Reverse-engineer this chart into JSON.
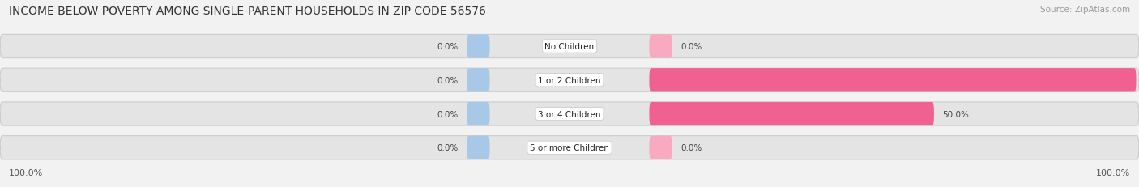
{
  "title": "INCOME BELOW POVERTY AMONG SINGLE-PARENT HOUSEHOLDS IN ZIP CODE 56576",
  "source": "Source: ZipAtlas.com",
  "categories": [
    "No Children",
    "1 or 2 Children",
    "3 or 4 Children",
    "5 or more Children"
  ],
  "single_father": [
    0.0,
    0.0,
    0.0,
    0.0
  ],
  "single_mother": [
    0.0,
    100.0,
    50.0,
    0.0
  ],
  "father_color": "#a8c8e8",
  "mother_color": "#f06090",
  "mother_color_light": "#f8aac0",
  "bg_color": "#f2f2f2",
  "bar_bg_color": "#e4e4e4",
  "bar_bg_edge": "#cccccc",
  "xlim_left": -100,
  "xlim_right": 100,
  "bottom_left_label": "100.0%",
  "bottom_right_label": "100.0%",
  "title_fontsize": 10,
  "source_fontsize": 7.5,
  "label_fontsize": 8,
  "bar_label_fontsize": 7.5,
  "cat_label_fontsize": 7.5
}
